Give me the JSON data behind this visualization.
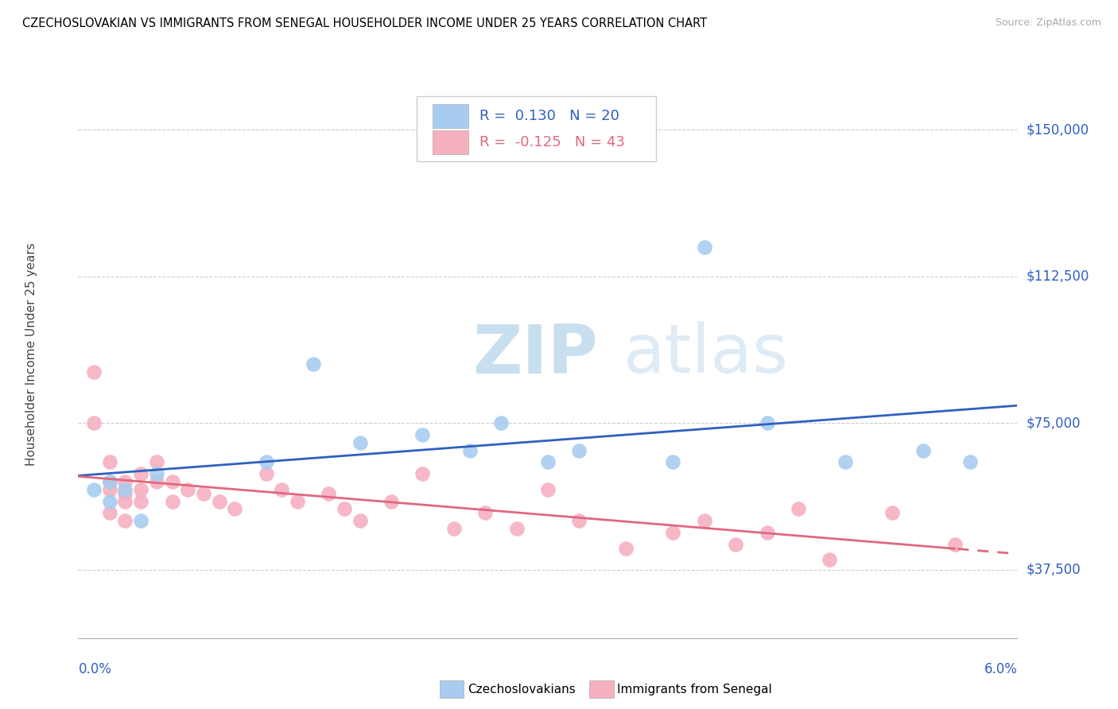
{
  "title": "CZECHOSLOVAKIAN VS IMMIGRANTS FROM SENEGAL HOUSEHOLDER INCOME UNDER 25 YEARS CORRELATION CHART",
  "source": "Source: ZipAtlas.com",
  "ylabel": "Householder Income Under 25 years",
  "xlim": [
    0.0,
    0.06
  ],
  "ylim": [
    20000,
    165000
  ],
  "yticks": [
    37500,
    75000,
    112500,
    150000
  ],
  "ytick_labels": [
    "$37,500",
    "$75,000",
    "$112,500",
    "$150,000"
  ],
  "legend1_R": "0.130",
  "legend1_N": "20",
  "legend2_R": "-0.125",
  "legend2_N": "43",
  "color_czech_scatter": "#a8ccf0",
  "color_senegal_scatter": "#f5b0c0",
  "color_line_czech": "#3060c0",
  "color_line_senegal": "#e06880",
  "watermark_zip": "ZIP",
  "watermark_atlas": "atlas",
  "czech_x": [
    0.001,
    0.002,
    0.002,
    0.003,
    0.004,
    0.005,
    0.012,
    0.015,
    0.018,
    0.022,
    0.025,
    0.027,
    0.03,
    0.032,
    0.038,
    0.04,
    0.044,
    0.049,
    0.054,
    0.057
  ],
  "czech_y": [
    58000,
    60000,
    55000,
    58000,
    50000,
    62000,
    65000,
    90000,
    70000,
    72000,
    68000,
    75000,
    65000,
    68000,
    65000,
    120000,
    75000,
    65000,
    68000,
    65000
  ],
  "senegal_x": [
    0.001,
    0.001,
    0.002,
    0.002,
    0.002,
    0.002,
    0.003,
    0.003,
    0.003,
    0.003,
    0.004,
    0.004,
    0.004,
    0.005,
    0.005,
    0.006,
    0.006,
    0.007,
    0.008,
    0.009,
    0.01,
    0.012,
    0.013,
    0.014,
    0.016,
    0.017,
    0.018,
    0.02,
    0.022,
    0.024,
    0.026,
    0.028,
    0.03,
    0.032,
    0.035,
    0.038,
    0.04,
    0.042,
    0.044,
    0.046,
    0.048,
    0.052,
    0.056
  ],
  "senegal_y": [
    88000,
    75000,
    65000,
    60000,
    58000,
    52000,
    60000,
    57000,
    55000,
    50000,
    62000,
    58000,
    55000,
    65000,
    60000,
    60000,
    55000,
    58000,
    57000,
    55000,
    53000,
    62000,
    58000,
    55000,
    57000,
    53000,
    50000,
    55000,
    62000,
    48000,
    52000,
    48000,
    58000,
    50000,
    43000,
    47000,
    50000,
    44000,
    47000,
    53000,
    40000,
    52000,
    44000
  ]
}
